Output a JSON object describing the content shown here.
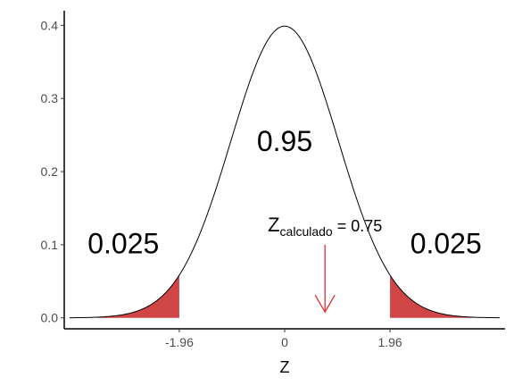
{
  "chart_data": {
    "type": "area",
    "title": "",
    "xlabel": "Z",
    "ylabel": "",
    "xlim": [
      -4.1,
      4.1
    ],
    "ylim": [
      -0.015,
      0.42
    ],
    "grid": false,
    "x_ticks": [
      -1.96,
      0,
      1.96
    ],
    "x_tick_labels": [
      "-1.96",
      "0",
      "1.96"
    ],
    "y_ticks": [
      0.0,
      0.1,
      0.2,
      0.3,
      0.4
    ],
    "y_tick_labels": [
      "0.0",
      "0.1",
      "0.2",
      "0.3",
      "0.4"
    ],
    "curve": {
      "distribution": "standard normal",
      "x_range": [
        -4,
        4
      ],
      "color": "#000000"
    },
    "shaded_regions": [
      {
        "x_from": -3.5,
        "x_to": -1.96,
        "color": "#d04545"
      },
      {
        "x_from": 1.96,
        "x_to": 3.5,
        "color": "#d04545"
      }
    ],
    "annotations": {
      "left_tail": {
        "text": "0.025",
        "x": -3.0,
        "y": 0.088
      },
      "center": {
        "text": "0.95",
        "x": 0.0,
        "y": 0.228
      },
      "right_tail": {
        "text": "0.025",
        "x": 3.0,
        "y": 0.088
      },
      "zcalc": {
        "main": "Z",
        "subscript": "calculado",
        "suffix": " = 0.75",
        "x": 0.75,
        "y": 0.118
      },
      "arrow": {
        "x": 0.75,
        "y_from": 0.1,
        "y_to": 0.008,
        "color": "#e03030"
      }
    }
  }
}
